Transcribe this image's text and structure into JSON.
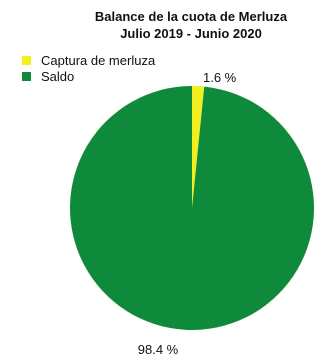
{
  "chart_data": {
    "type": "pie",
    "title": "Balance de la cuota de Merluza",
    "subtitle": "Julio 2019 - Junio 2020",
    "categories": [
      "Captura de merluza",
      "Saldo"
    ],
    "values": [
      1.6,
      98.4
    ],
    "data_labels": [
      "1.6 %",
      "98.4 %"
    ],
    "colors": [
      "#f2ef1e",
      "#0f8a3a"
    ],
    "legend_position": "top-left"
  }
}
